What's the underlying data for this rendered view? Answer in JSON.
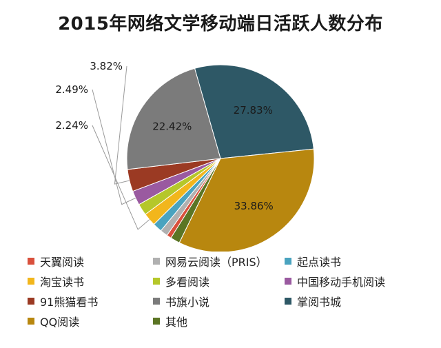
{
  "chart_data": {
    "type": "pie",
    "title": "2015年网络文学移动端日活跃人数分布",
    "series": [
      {
        "name": "天翼阅读",
        "value": 0.8,
        "color": "#d9503c",
        "label": ""
      },
      {
        "name": "网易云阅读（PRIS）",
        "value": 1.3,
        "color": "#b0b0b0",
        "label": ""
      },
      {
        "name": "起点读书",
        "value": 1.6,
        "color": "#4aa3bf",
        "label": ""
      },
      {
        "name": "淘宝读书",
        "value": 2.24,
        "color": "#f2b61c",
        "label": "2.24%"
      },
      {
        "name": "多看阅读",
        "value": 2.0,
        "color": "#b5c72a",
        "label": ""
      },
      {
        "name": "中国移动手机阅读",
        "value": 2.49,
        "color": "#9a5aa0",
        "label": "2.49%"
      },
      {
        "name": "91熊猫看书",
        "value": 3.82,
        "color": "#9b3a23",
        "label": "3.82%"
      },
      {
        "name": "书旗小说",
        "value": 22.42,
        "color": "#7b7b7b",
        "label": "22.42%"
      },
      {
        "name": "掌阅书城",
        "value": 27.83,
        "color": "#2e5866",
        "label": "27.83%"
      },
      {
        "name": "QQ阅读",
        "value": 33.86,
        "color": "#b8870f",
        "label": "33.86%"
      },
      {
        "name": "其他",
        "value": 1.64,
        "color": "#5b7524",
        "label": ""
      }
    ],
    "legend_position": "bottom"
  }
}
